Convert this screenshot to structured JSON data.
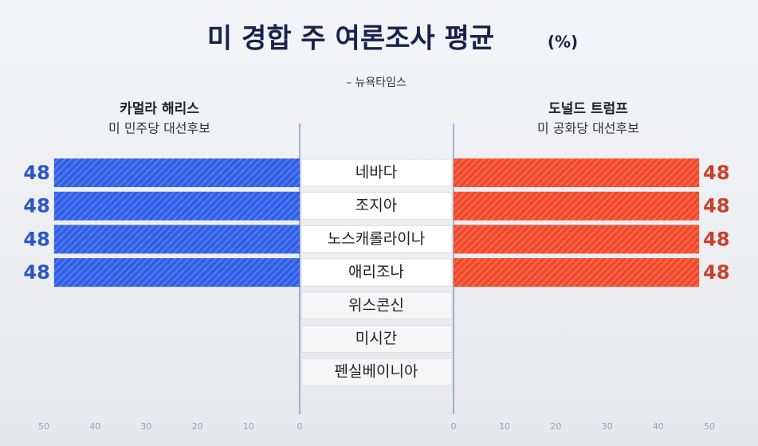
{
  "chart_data": {
    "type": "butterfly_bar",
    "title": "미 경합 주 여론조사 평균",
    "unit": "(%)",
    "source": "– 뉴욕타임스",
    "categories": [
      "네바다",
      "조지아",
      "노스캐롤라이나",
      "애리조나",
      "위스콘신",
      "미시간",
      "펜실베이니아"
    ],
    "series": [
      {
        "name": "카멀라 해리스",
        "subtitle": "미 민주당 대선후보",
        "color": "#2f5fe6",
        "label_color": "#2a55c8",
        "values": [
          48,
          48,
          48,
          48,
          null,
          null,
          null
        ]
      },
      {
        "name": "도널드 트럼프",
        "subtitle": "미 공화당 대선후보",
        "color": "#f2492b",
        "label_color": "#c8412a",
        "values": [
          48,
          48,
          48,
          48,
          null,
          null,
          null
        ]
      }
    ],
    "xlim": [
      0,
      50
    ],
    "xticks": [
      0,
      10,
      20,
      30,
      40,
      50
    ]
  }
}
